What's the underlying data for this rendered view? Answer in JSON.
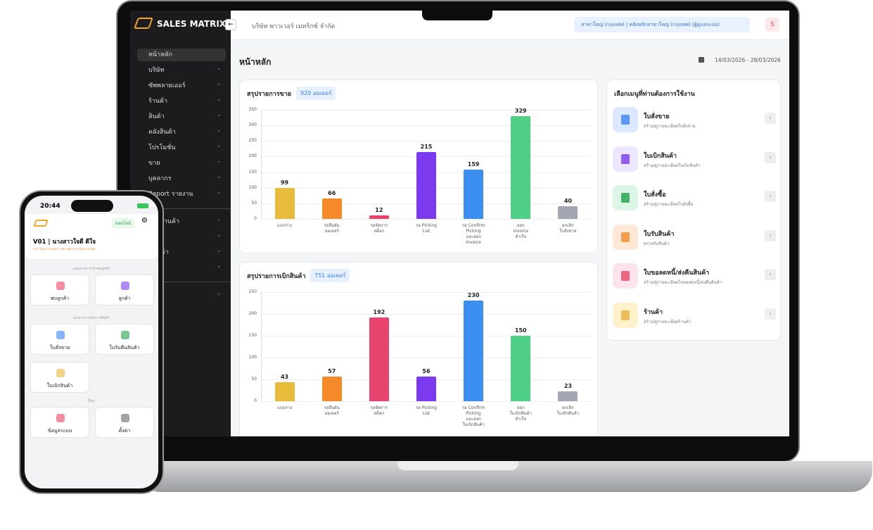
{
  "app": {
    "brand": "SALES MATRIX",
    "sidebar": [
      "หน้าหลัก",
      "บริษัท",
      "ซัพพลายเออร์",
      "ร้านค้า",
      "สินค้า",
      "คลังสินค้า",
      "โปรโมชั่น",
      "ขาย",
      "บุคลากร",
      "Report รายงาน"
    ],
    "sidebar2": [
      "ภาพร้านค้า",
      "รขาย",
      "นสินค้า",
      "ซื้อ"
    ],
    "sidebar3": [
      "ระบบ"
    ],
    "company": "บริษัท พาวเวอร์ เมทริกซ์ จำกัด",
    "branch": "สาขาใหญ่ (กรุงเทพ) | คลังหลักสาขาใหญ่ (กรุงเทพ) (ผู้ดูแลระบบ)",
    "avatar": "S",
    "page_title": "หน้าหลัก",
    "date_range": "14/03/2026 - 28/03/2026",
    "menu_title": "เลือกเมนูที่ท่านต้องการใช้งาน",
    "menu": [
      {
        "title": "ใบสั่งขาย",
        "desc": "สร้าง/ดูรายละเอียดใบสั่งขาย"
      },
      {
        "title": "ใบเบิกสินค้า",
        "desc": "สร้าง/ดูรายละเอียดใบเบิกสินค้า"
      },
      {
        "title": "ใบสั่งซื้อ",
        "desc": "สร้าง/ดูรายละเอียดใบสั่งซื้อ"
      },
      {
        "title": "ใบรับสินค้า",
        "desc": "ตรวจรับสินค้า"
      },
      {
        "title": "ใบขอลดหนี้/ส่งคืนสินค้า",
        "desc": "สร้าง/ดูรายละเอียดใบขอลดหนี้/ส่งคืนสินค้า"
      },
      {
        "title": "ร้านค้า",
        "desc": "สร้าง/ดูรายละเอียดร้านค้า"
      }
    ]
  },
  "phone": {
    "time": "20:44",
    "status": "ออนไลน์",
    "user": "V01 | นางสาวใจดี ดีใจ",
    "user_sub": "สาขาใหญ่ (กรุงเทพ) | คลัง ผลิต สาขาใหญ่ กรุงเทพ",
    "sections": [
      {
        "title": "แผนงานการเข้าพบลูกค้า",
        "tiles": [
          "พบลูกค้า",
          "ลูกค้า"
        ]
      },
      {
        "title": "เอกสารการจัดการสินค้า",
        "tiles": [
          "ใบสั่งขาย",
          "ใบรับคืนสินค้า",
          "ใบเบิกสินค้า"
        ]
      },
      {
        "title": "อื่นๆ",
        "tiles": [
          "ข้อมูลระบบ",
          "ตั้งค่า"
        ]
      }
    ]
  },
  "chart_data": [
    {
      "type": "bar",
      "title": "สรุปรายการขาย",
      "badge": "920 ออเดอร์",
      "categories": [
        "แบบร่าง",
        "รอยืนยัน\nออเดอร์",
        "รอจัดการ\nสต็อก",
        "รอ Picking\nList",
        "รอ Confirm\nPicking\nและออก\nInvoice",
        "ออก\nInvoice\nสำเร็จ",
        "ยกเลิก\nใบสั่งขาย"
      ],
      "values": [
        99,
        66,
        12,
        215,
        159,
        329,
        40
      ],
      "colors": [
        "#e9bb3b",
        "#f58a2b",
        "#e94466",
        "#7b3aed",
        "#3b8ff0",
        "#4fce85",
        "#a3a7b3"
      ],
      "ylim": [
        0,
        350
      ],
      "yticks": [
        0,
        50,
        100,
        150,
        200,
        250,
        300,
        350
      ],
      "grid": true
    },
    {
      "type": "bar",
      "title": "สรุปรายการเบิกสินค้า",
      "badge": "751 ออเดอร์",
      "categories": [
        "แบบร่าง",
        "รอยืนยัน\nออเดอร์",
        "รอจัดการ\nสต็อก",
        "รอ Picking\nList",
        "รอ Confirm\nPicking\nและออก\nใบเบิกสินค้า",
        "ออก\nใบเบิกสินค้า\nสำเร็จ",
        "ยกเลิก\nใบเบิกสินค้า"
      ],
      "values": [
        43,
        57,
        192,
        56,
        230,
        150,
        23
      ],
      "colors": [
        "#e9bb3b",
        "#f58a2b",
        "#e8436e",
        "#7b3aed",
        "#3b8ff0",
        "#4fce85",
        "#a3a7b3"
      ],
      "ylim": [
        0,
        250
      ],
      "yticks": [
        0,
        50,
        100,
        150,
        200,
        250
      ],
      "grid": true
    }
  ]
}
